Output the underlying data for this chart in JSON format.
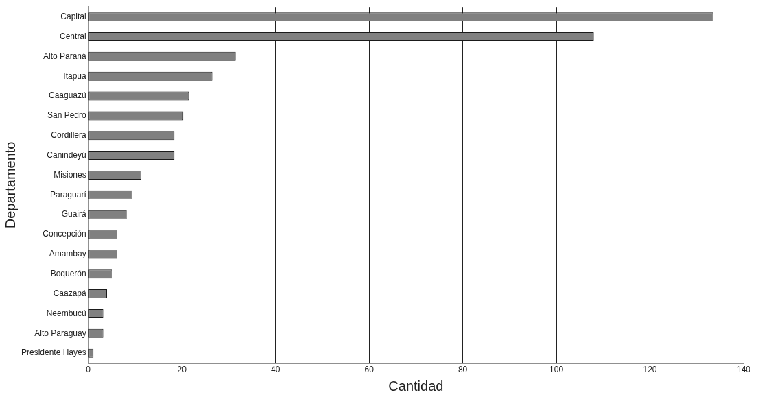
{
  "chart_data": {
    "type": "bar",
    "orientation": "horizontal",
    "xlabel": "Cantidad",
    "ylabel": "Departamento",
    "categories": [
      "Capital",
      "Central",
      "Alto Paraná",
      "Itapua",
      "Caaguazú",
      "San Pedro",
      "Cordillera",
      "Canindeyú",
      "Misiones",
      "Paraguarí",
      "Guairá",
      "Concepción",
      "Amambay",
      "Boquerón",
      "Caazapá",
      "Ñeembucú",
      "Alto Paraguay",
      "Presidente Hayes"
    ],
    "values": [
      133.5,
      108,
      31.5,
      26.5,
      21.5,
      20.3,
      18.4,
      18.4,
      11.3,
      9.4,
      8.2,
      6.2,
      6.2,
      5.1,
      4,
      3.2,
      3.2,
      1.1
    ],
    "color": "#808080",
    "xlim": [
      0,
      140
    ],
    "xticks": [
      0,
      20,
      40,
      60,
      80,
      100,
      120,
      140
    ],
    "grid": "x",
    "legend": false
  }
}
